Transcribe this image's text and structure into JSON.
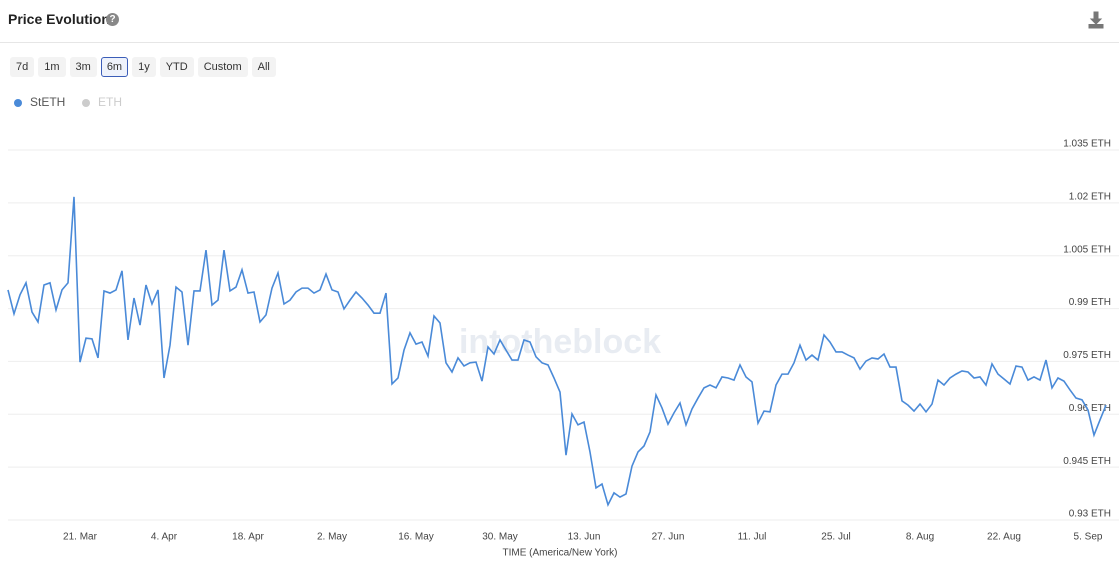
{
  "header": {
    "title": "Price Evolution"
  },
  "controls": {
    "ranges": [
      "7d",
      "1m",
      "3m",
      "6m",
      "1y",
      "YTD",
      "Custom",
      "All"
    ],
    "selected": "6m"
  },
  "watermark": "intotheblock",
  "chart_data": {
    "type": "line",
    "x_label": "TIME (America/New York)",
    "categories": [
      null,
      null,
      null,
      null,
      null,
      null,
      null,
      null,
      null,
      null,
      null,
      null,
      "21. Mar",
      null,
      null,
      null,
      null,
      null,
      null,
      null,
      null,
      null,
      null,
      null,
      null,
      null,
      "4. Apr",
      null,
      null,
      null,
      null,
      null,
      null,
      null,
      null,
      null,
      null,
      null,
      null,
      null,
      "18. Apr",
      null,
      null,
      null,
      null,
      null,
      null,
      null,
      null,
      null,
      null,
      null,
      null,
      null,
      "2. May",
      null,
      null,
      null,
      null,
      null,
      null,
      null,
      null,
      null,
      null,
      null,
      null,
      null,
      "16. May",
      null,
      null,
      null,
      null,
      null,
      null,
      null,
      null,
      null,
      null,
      null,
      null,
      null,
      "30. May",
      null,
      null,
      null,
      null,
      null,
      null,
      null,
      null,
      null,
      null,
      null,
      null,
      null,
      "13. Jun",
      null,
      null,
      null,
      null,
      null,
      null,
      null,
      null,
      null,
      null,
      null,
      null,
      null,
      "27. Jun",
      null,
      null,
      null,
      null,
      null,
      null,
      null,
      null,
      null,
      null,
      null,
      null,
      null,
      "11. Jul",
      null,
      null,
      null,
      null,
      null,
      null,
      null,
      null,
      null,
      null,
      null,
      null,
      null,
      "25. Jul",
      null,
      null,
      null,
      null,
      null,
      null,
      null,
      null,
      null,
      null,
      null,
      null,
      null,
      "8. Aug",
      null,
      null,
      null,
      null,
      null,
      null,
      null,
      null,
      null,
      null,
      null,
      null,
      null,
      "22. Aug",
      null,
      null,
      null,
      null,
      null,
      null,
      null,
      null,
      null,
      null,
      null,
      null,
      null,
      "5. Sep",
      null,
      null,
      null
    ],
    "series": [
      {
        "name": "StETH",
        "color": "#4a8ad8",
        "values": [
          0.9953,
          0.9885,
          0.9939,
          0.9973,
          0.989,
          0.9862,
          0.9967,
          0.9973,
          0.9896,
          0.9953,
          0.9973,
          1.0217,
          0.9748,
          0.9816,
          0.9814,
          0.976,
          0.995,
          0.9944,
          0.9953,
          1.0007,
          0.9811,
          0.993,
          0.9853,
          0.9967,
          0.9913,
          0.9953,
          0.9703,
          0.9796,
          0.9961,
          0.9947,
          0.9796,
          0.995,
          0.995,
          1.0066,
          0.991,
          0.9924,
          1.0066,
          0.995,
          0.9961,
          1.001,
          0.9944,
          0.9947,
          0.9862,
          0.9882,
          0.9958,
          1.0001,
          0.9913,
          0.9924,
          0.9947,
          0.9958,
          0.9958,
          0.9944,
          0.9953,
          0.9998,
          0.9953,
          0.9947,
          0.9899,
          0.9924,
          0.9947,
          0.993,
          0.991,
          0.9887,
          0.9887,
          0.9944,
          0.9686,
          0.9703,
          0.9782,
          0.9831,
          0.9799,
          0.9805,
          0.9765,
          0.9879,
          0.9859,
          0.9746,
          0.972,
          0.976,
          0.9737,
          0.9746,
          0.9748,
          0.9694,
          0.9791,
          0.9771,
          0.9811,
          0.9782,
          0.9754,
          0.9754,
          0.9811,
          0.9805,
          0.9763,
          0.9746,
          0.974,
          0.9703,
          0.9663,
          0.9484,
          0.9601,
          0.957,
          0.9578,
          0.9493,
          0.9391,
          0.9402,
          0.9343,
          0.9377,
          0.9365,
          0.9374,
          0.9453,
          0.9493,
          0.951,
          0.955,
          0.9655,
          0.9618,
          0.9572,
          0.9604,
          0.9632,
          0.957,
          0.9615,
          0.9646,
          0.9675,
          0.9683,
          0.9675,
          0.9706,
          0.9703,
          0.9697,
          0.974,
          0.9706,
          0.9692,
          0.9575,
          0.9609,
          0.9607,
          0.9683,
          0.9714,
          0.9714,
          0.9746,
          0.9796,
          0.9754,
          0.9768,
          0.9754,
          0.9825,
          0.9805,
          0.9777,
          0.9777,
          0.9768,
          0.976,
          0.9728,
          0.9751,
          0.976,
          0.9757,
          0.9771,
          0.9734,
          0.9734,
          0.9638,
          0.9626,
          0.9609,
          0.9629,
          0.9607,
          0.9629,
          0.9697,
          0.9683,
          0.9703,
          0.9714,
          0.9723,
          0.972,
          0.9703,
          0.9706,
          0.9683,
          0.9743,
          0.9714,
          0.97,
          0.9686,
          0.9737,
          0.9734,
          0.9697,
          0.9706,
          0.9697,
          0.9754,
          0.9675,
          0.9703,
          0.9694,
          0.9669,
          0.9646,
          0.9641,
          0.9612,
          0.9541,
          0.9584,
          0.9626
        ]
      }
    ],
    "hidden_series": [
      {
        "name": "ETH",
        "color": "#cccccc"
      }
    ],
    "ylim": [
      0.93,
      1.035
    ],
    "yticks": [
      {
        "value": 0.93,
        "label": "0.93 ETH"
      },
      {
        "value": 0.945,
        "label": "0.945 ETH"
      },
      {
        "value": 0.96,
        "label": "0.96 ETH"
      },
      {
        "value": 0.975,
        "label": "0.975 ETH"
      },
      {
        "value": 0.99,
        "label": "0.99 ETH"
      },
      {
        "value": 1.005,
        "label": "1.005 ETH"
      },
      {
        "value": 1.02,
        "label": "1.02 ETH"
      },
      {
        "value": 1.035,
        "label": "1.035 ETH"
      }
    ],
    "grid": true
  }
}
